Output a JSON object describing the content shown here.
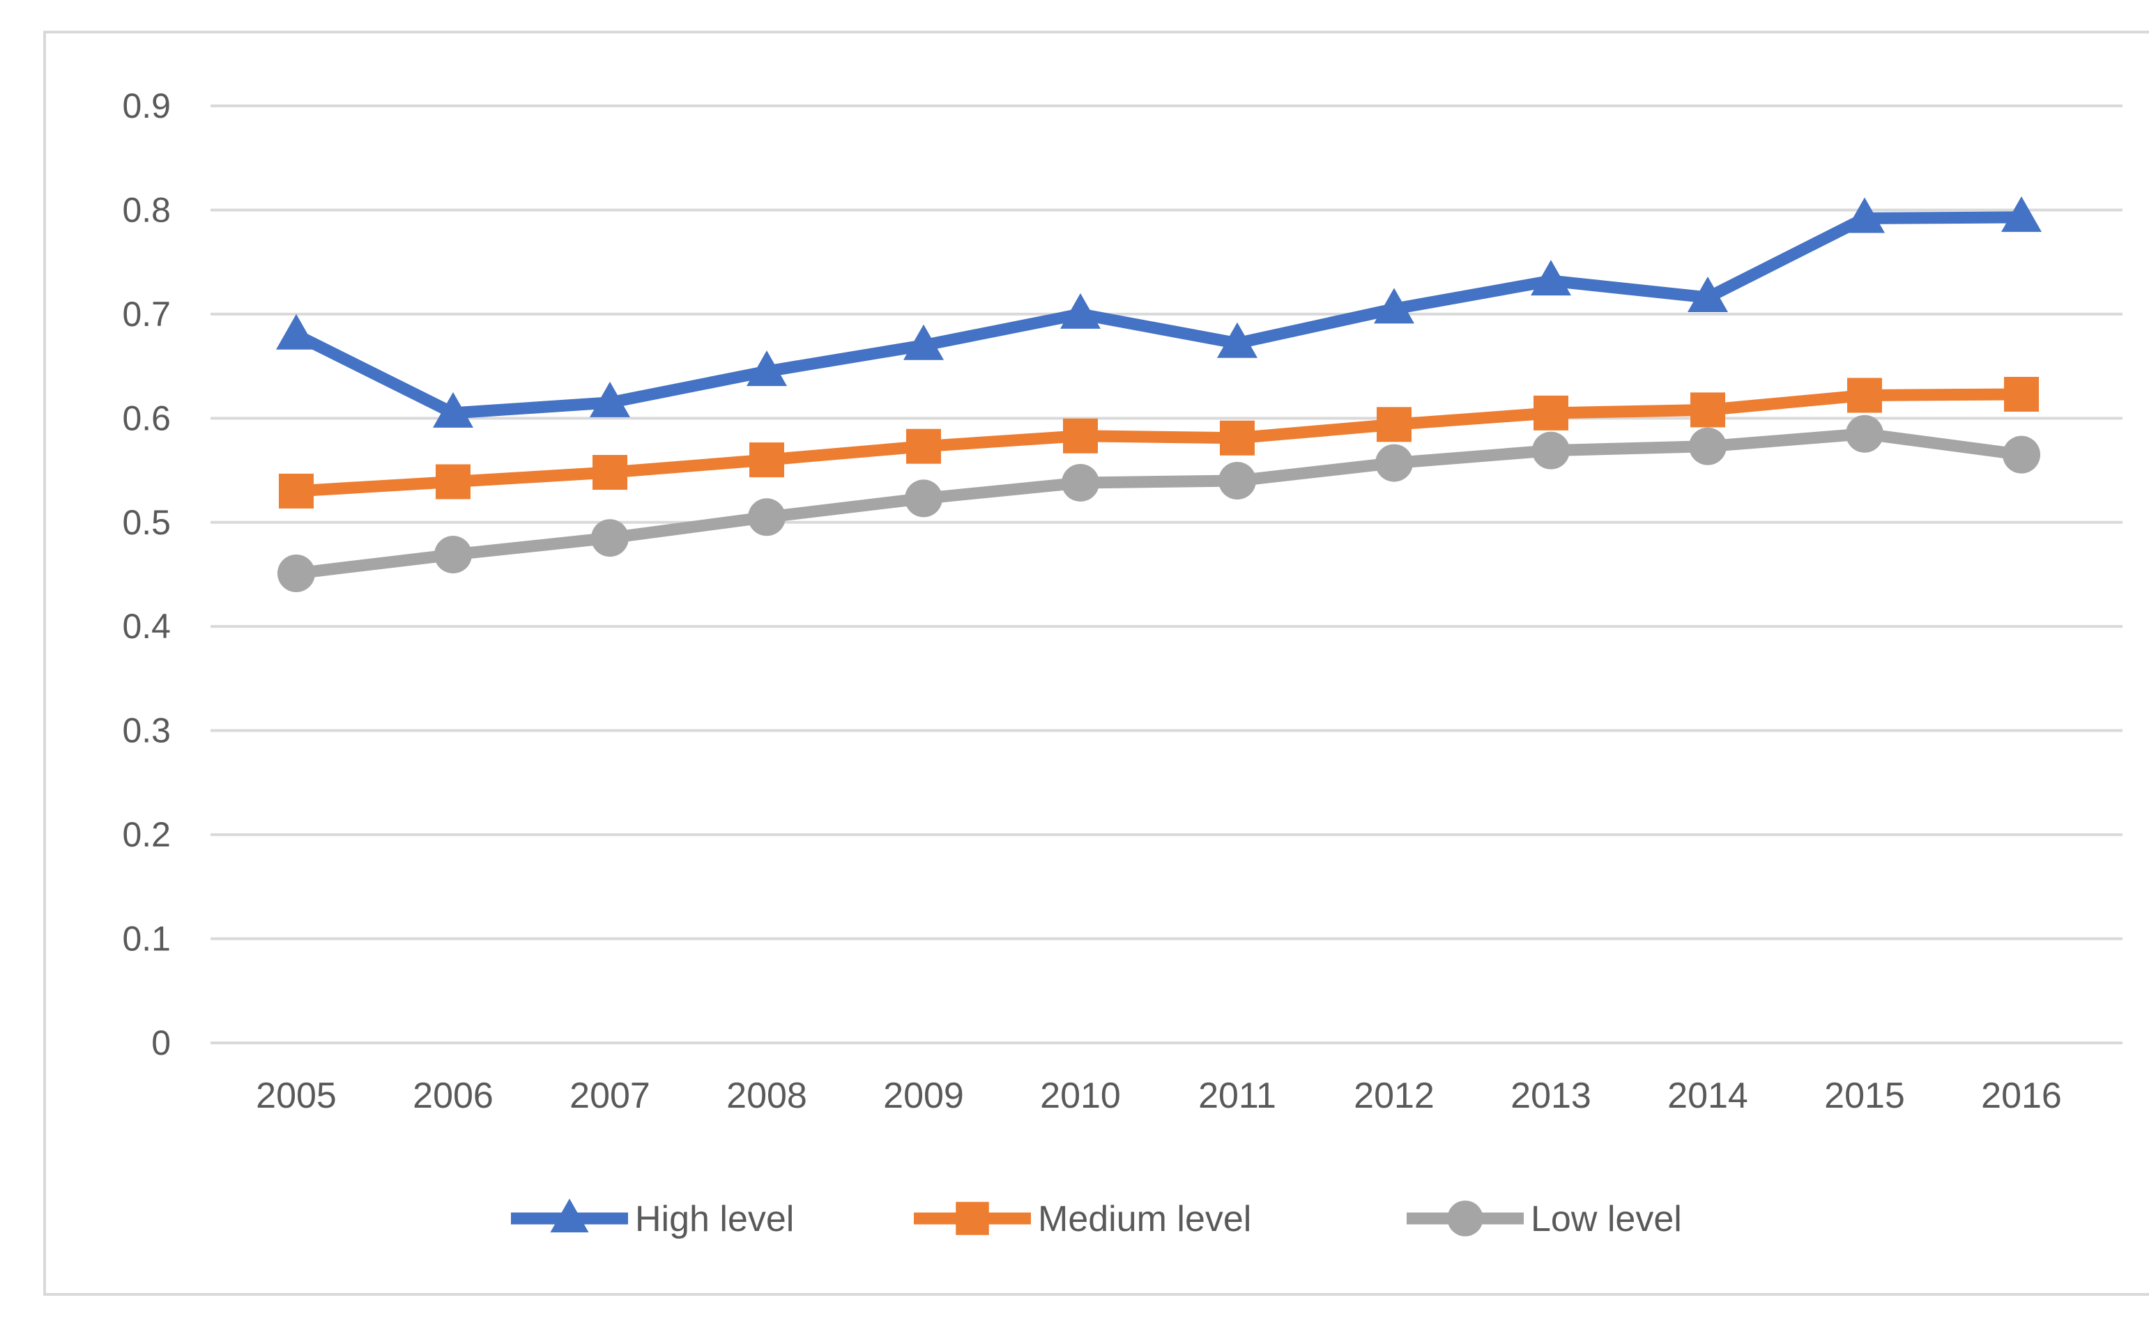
{
  "chart_data": {
    "type": "line",
    "title": "",
    "xlabel": "",
    "ylabel": "",
    "categories": [
      "2005",
      "2006",
      "2007",
      "2008",
      "2009",
      "2010",
      "2011",
      "2012",
      "2013",
      "2014",
      "2015",
      "2016"
    ],
    "series": [
      {
        "name": "High level",
        "color": "#4472C4",
        "marker": "triangle",
        "values": [
          0.68,
          0.605,
          0.615,
          0.645,
          0.67,
          0.7,
          0.672,
          0.705,
          0.732,
          0.716,
          0.792,
          0.793
        ]
      },
      {
        "name": "Medium level",
        "color": "#ED7D31",
        "marker": "square",
        "values": [
          0.53,
          0.539,
          0.548,
          0.56,
          0.573,
          0.583,
          0.581,
          0.594,
          0.605,
          0.608,
          0.622,
          0.623
        ]
      },
      {
        "name": "Low level",
        "color": "#A5A5A5",
        "marker": "circle",
        "values": [
          0.451,
          0.469,
          0.485,
          0.505,
          0.523,
          0.538,
          0.54,
          0.557,
          0.569,
          0.573,
          0.585,
          0.565
        ]
      }
    ],
    "ylim": [
      0,
      0.9
    ],
    "ytick_step": 0.1,
    "ytick_labels": [
      "0",
      "0.1",
      "0.2",
      "0.3",
      "0.4",
      "0.5",
      "0.6",
      "0.7",
      "0.8",
      "0.9"
    ],
    "grid": true,
    "legend_position": "bottom",
    "gridline_color": "#D9D9D9",
    "border_color": "#D9D9D9",
    "text_color": "#595959"
  }
}
